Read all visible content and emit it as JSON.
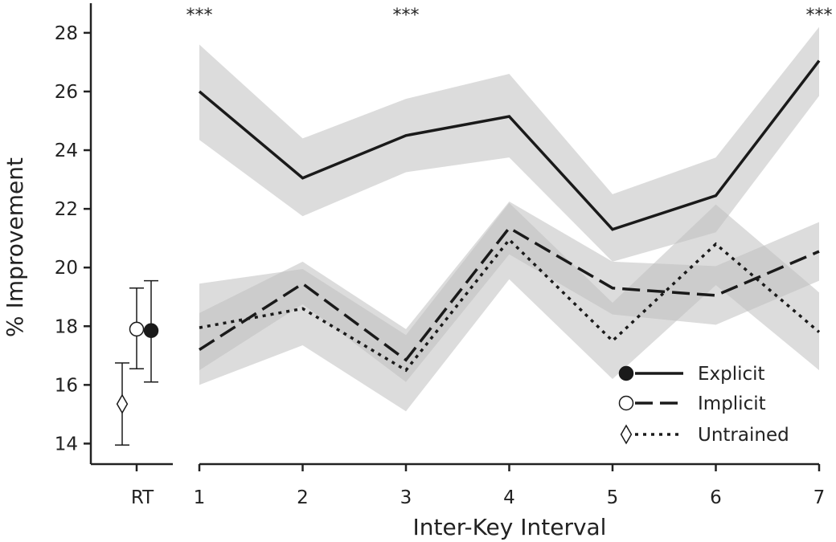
{
  "chart_data": {
    "type": "line",
    "ylabel": "% Improvement",
    "xlabel": "Inter-Key Interval",
    "ylim": [
      13.3,
      28.9
    ],
    "y_ticks": [
      "14",
      "16",
      "18",
      "20",
      "22",
      "24",
      "26",
      "28"
    ],
    "grid": false,
    "legend_position": "lower-right",
    "significance_marker": "***",
    "significance_at": [
      1,
      3,
      7
    ],
    "rt": {
      "label": "RT",
      "points": [
        {
          "series": "Explicit",
          "value": 17.85,
          "err_low": 16.1,
          "err_high": 19.55
        },
        {
          "series": "Implicit",
          "value": 17.9,
          "err_low": 16.55,
          "err_high": 19.3
        },
        {
          "series": "Untrained",
          "value": 15.35,
          "err_low": 13.95,
          "err_high": 16.75
        }
      ]
    },
    "x": [
      "1",
      "2",
      "3",
      "4",
      "5",
      "6",
      "7"
    ],
    "series": [
      {
        "name": "Explicit",
        "style": "solid",
        "marker": "filled-circle",
        "values": [
          26.0,
          23.05,
          24.5,
          25.15,
          21.3,
          22.45,
          27.05
        ],
        "lower": [
          24.35,
          21.75,
          23.25,
          23.75,
          20.2,
          21.2,
          25.85
        ],
        "upper": [
          27.6,
          24.4,
          25.75,
          26.6,
          22.5,
          23.75,
          28.2
        ]
      },
      {
        "name": "Implicit",
        "style": "dashed",
        "marker": "open-circle",
        "values": [
          17.2,
          19.45,
          16.85,
          21.35,
          19.3,
          19.05,
          20.55
        ],
        "lower": [
          16.5,
          18.75,
          16.1,
          20.45,
          18.4,
          18.05,
          19.55
        ],
        "upper": [
          18.45,
          20.2,
          17.9,
          22.25,
          20.2,
          20.05,
          21.55
        ]
      },
      {
        "name": "Untrained",
        "style": "dotted",
        "marker": "open-diamond",
        "values": [
          17.95,
          18.6,
          16.5,
          20.95,
          17.5,
          20.8,
          17.8
        ],
        "lower": [
          16.0,
          17.35,
          15.1,
          19.6,
          16.2,
          19.4,
          16.5
        ],
        "upper": [
          19.45,
          19.95,
          17.7,
          22.2,
          18.8,
          22.15,
          19.15
        ]
      }
    ],
    "colors": {
      "line": "#1a1a1a",
      "band": "#bfbfbf",
      "axis": "#222222"
    }
  }
}
